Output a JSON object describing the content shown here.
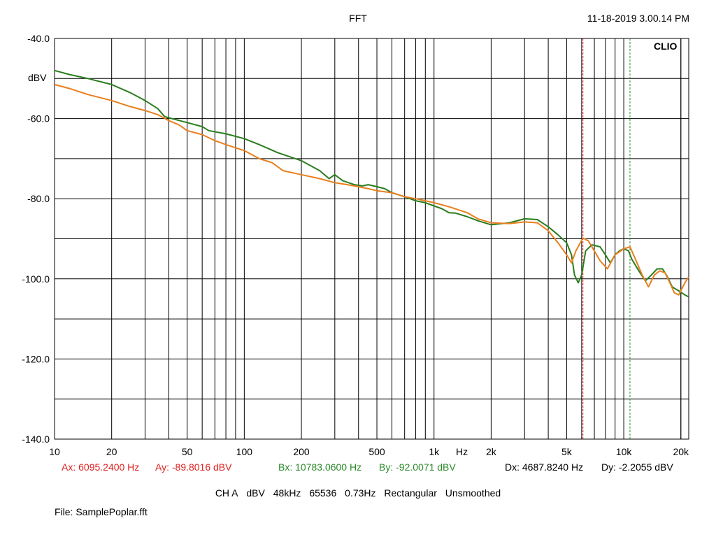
{
  "header": {
    "title": "FFT",
    "timestamp": "11-18-2019 3.00.14 PM",
    "logo": "CLIO"
  },
  "cursors": {
    "a": {
      "x_text": "Ax: 6095.2400 Hz",
      "y_text": "Ay: -89.8016 dBV",
      "color": "#e02020"
    },
    "b": {
      "x_text": "Bx: 10783.0600 Hz",
      "y_text": "By: -92.0071 dBV",
      "color": "#2a8a2a"
    },
    "delta": {
      "x_text": "Dx: 4687.8240 Hz",
      "y_text": "Dy: -2.2055 dBV"
    }
  },
  "settings": {
    "channel": "CH A",
    "unit": "dBV",
    "rate": "48kHz",
    "size": "65536",
    "resolution": "0.73Hz",
    "window": "Rectangular",
    "smoothing": "Unsmoothed"
  },
  "file": {
    "label": "File: SamplePoplar.fft"
  },
  "chart_data": {
    "type": "line",
    "xscale": "log",
    "xlim": [
      10,
      22000
    ],
    "ylim": [
      -140,
      -40
    ],
    "grid": true,
    "ylabel": "dBV",
    "xlabel": "Hz",
    "x_ticks": [
      {
        "v": 10,
        "label": "10"
      },
      {
        "v": 20,
        "label": "20"
      },
      {
        "v": 50,
        "label": "50"
      },
      {
        "v": 100,
        "label": "100"
      },
      {
        "v": 200,
        "label": "200"
      },
      {
        "v": 500,
        "label": "500"
      },
      {
        "v": 1000,
        "label": "1k"
      },
      {
        "v": 2000,
        "label": "2k"
      },
      {
        "v": 5000,
        "label": "5k"
      },
      {
        "v": 10000,
        "label": "10k"
      },
      {
        "v": 20000,
        "label": "20k"
      }
    ],
    "y_ticks": [
      {
        "v": -40,
        "label": "-40.0"
      },
      {
        "v": -60,
        "label": "-60.0"
      },
      {
        "v": -80,
        "label": "-80.0"
      },
      {
        "v": -100,
        "label": "-100.0"
      },
      {
        "v": -120,
        "label": "-120.0"
      },
      {
        "v": -140,
        "label": "-140.0"
      }
    ],
    "cursor_a_hz": 6095.24,
    "cursor_b_hz": 10783.06,
    "series": [
      {
        "color": "#2a7d1e",
        "points": [
          [
            10,
            -48
          ],
          [
            12,
            -49
          ],
          [
            15,
            -50
          ],
          [
            20,
            -51.5
          ],
          [
            25,
            -53.5
          ],
          [
            30,
            -55.5
          ],
          [
            35,
            -57.5
          ],
          [
            38,
            -59.5
          ],
          [
            40,
            -59.8
          ],
          [
            50,
            -61
          ],
          [
            60,
            -62
          ],
          [
            65,
            -63
          ],
          [
            80,
            -63.8
          ],
          [
            100,
            -65
          ],
          [
            120,
            -66.5
          ],
          [
            150,
            -68.5
          ],
          [
            200,
            -70.5
          ],
          [
            250,
            -73
          ],
          [
            280,
            -75
          ],
          [
            300,
            -74
          ],
          [
            330,
            -75.5
          ],
          [
            380,
            -76.5
          ],
          [
            420,
            -76.8
          ],
          [
            450,
            -76.5
          ],
          [
            500,
            -77
          ],
          [
            550,
            -77.5
          ],
          [
            600,
            -78.5
          ],
          [
            700,
            -79.5
          ],
          [
            800,
            -80.5
          ],
          [
            900,
            -81
          ],
          [
            1000,
            -81.8
          ],
          [
            1100,
            -82.5
          ],
          [
            1200,
            -83.5
          ],
          [
            1300,
            -83.6
          ],
          [
            1500,
            -84.5
          ],
          [
            1700,
            -85.5
          ],
          [
            2000,
            -86.5
          ],
          [
            2500,
            -86
          ],
          [
            3000,
            -85
          ],
          [
            3500,
            -85.2
          ],
          [
            4000,
            -87
          ],
          [
            4500,
            -89
          ],
          [
            5000,
            -91
          ],
          [
            5300,
            -94
          ],
          [
            5500,
            -99
          ],
          [
            5750,
            -101
          ],
          [
            6000,
            -99
          ],
          [
            6300,
            -93
          ],
          [
            6800,
            -91.5
          ],
          [
            7500,
            -92
          ],
          [
            8000,
            -94
          ],
          [
            8500,
            -96
          ],
          [
            9000,
            -94
          ],
          [
            9500,
            -93
          ],
          [
            10000,
            -92.5
          ],
          [
            10600,
            -93
          ],
          [
            11000,
            -95
          ],
          [
            12000,
            -98
          ],
          [
            13000,
            -100.5
          ],
          [
            14000,
            -99
          ],
          [
            15000,
            -97.5
          ],
          [
            16000,
            -97.5
          ],
          [
            17000,
            -99.5
          ],
          [
            18000,
            -102
          ],
          [
            19500,
            -103
          ],
          [
            21000,
            -104
          ],
          [
            22000,
            -104.5
          ]
        ]
      },
      {
        "color": "#e87f1e",
        "points": [
          [
            10,
            -51.5
          ],
          [
            12,
            -52.5
          ],
          [
            15,
            -54
          ],
          [
            20,
            -55.5
          ],
          [
            25,
            -57
          ],
          [
            30,
            -58
          ],
          [
            35,
            -59
          ],
          [
            40,
            -60.5
          ],
          [
            45,
            -61.5
          ],
          [
            50,
            -63
          ],
          [
            60,
            -64
          ],
          [
            70,
            -65.5
          ],
          [
            80,
            -66.5
          ],
          [
            100,
            -68
          ],
          [
            120,
            -70
          ],
          [
            140,
            -71
          ],
          [
            160,
            -73
          ],
          [
            200,
            -74
          ],
          [
            250,
            -75
          ],
          [
            300,
            -76
          ],
          [
            350,
            -76.5
          ],
          [
            400,
            -77
          ],
          [
            450,
            -77.5
          ],
          [
            500,
            -78
          ],
          [
            600,
            -78.5
          ],
          [
            700,
            -79.5
          ],
          [
            800,
            -80
          ],
          [
            900,
            -80.5
          ],
          [
            1000,
            -81
          ],
          [
            1200,
            -82
          ],
          [
            1500,
            -83.5
          ],
          [
            1700,
            -85
          ],
          [
            2000,
            -86
          ],
          [
            2500,
            -86.2
          ],
          [
            3000,
            -85.8
          ],
          [
            3500,
            -86
          ],
          [
            4000,
            -88
          ],
          [
            4500,
            -91
          ],
          [
            5000,
            -94
          ],
          [
            5300,
            -96
          ],
          [
            5600,
            -93
          ],
          [
            6095,
            -89.8
          ],
          [
            6500,
            -90.5
          ],
          [
            7000,
            -93
          ],
          [
            7500,
            -95.5
          ],
          [
            8200,
            -97.5
          ],
          [
            9000,
            -94
          ],
          [
            10000,
            -92.5
          ],
          [
            10783,
            -92
          ],
          [
            11500,
            -95
          ],
          [
            12500,
            -99
          ],
          [
            13500,
            -102
          ],
          [
            14500,
            -99
          ],
          [
            15500,
            -98
          ],
          [
            16500,
            -98.5
          ],
          [
            17500,
            -101
          ],
          [
            18500,
            -103.5
          ],
          [
            19500,
            -104
          ],
          [
            21000,
            -101
          ],
          [
            22000,
            -99.5
          ]
        ]
      }
    ]
  }
}
